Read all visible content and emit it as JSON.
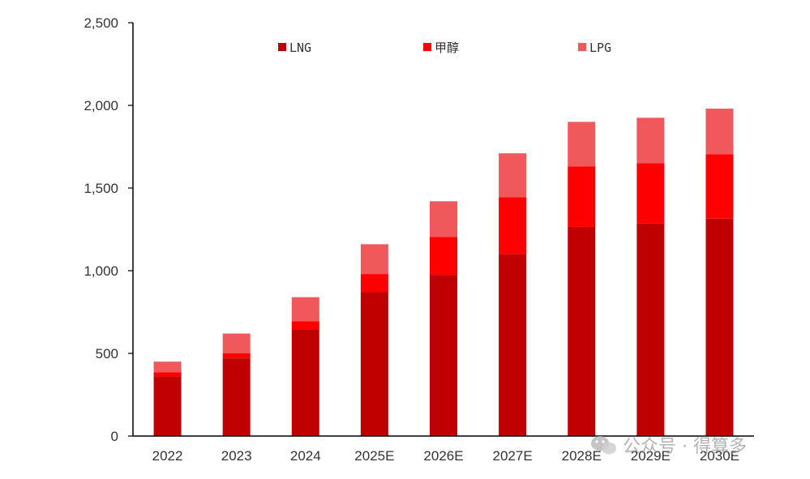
{
  "chart_data": {
    "type": "bar",
    "stacked": true,
    "categories": [
      "2022",
      "2023",
      "2024",
      "2025E",
      "2026E",
      "2027E",
      "2028E",
      "2029E",
      "2030E"
    ],
    "series": [
      {
        "name": "LNG",
        "color": "#c00000",
        "values": [
          360,
          470,
          645,
          870,
          975,
          1100,
          1265,
          1285,
          1315
        ]
      },
      {
        "name": "甲醇",
        "color": "#ff0000",
        "values": [
          25,
          30,
          50,
          110,
          230,
          345,
          365,
          365,
          390
        ]
      },
      {
        "name": "LPG",
        "color": "#f0585c",
        "values": [
          65,
          120,
          145,
          180,
          215,
          265,
          270,
          275,
          275
        ]
      }
    ],
    "yticks": [
      0,
      500,
      1000,
      1500,
      2000,
      2500
    ],
    "ytick_labels": [
      "0",
      "500",
      "1,000",
      "1,500",
      "2,000",
      "2,500"
    ],
    "ylim": [
      0,
      2500
    ],
    "legend_position": "top",
    "grid": false
  },
  "watermark": {
    "text": "公众号 · 得算多",
    "icon": "wechat-icon"
  }
}
